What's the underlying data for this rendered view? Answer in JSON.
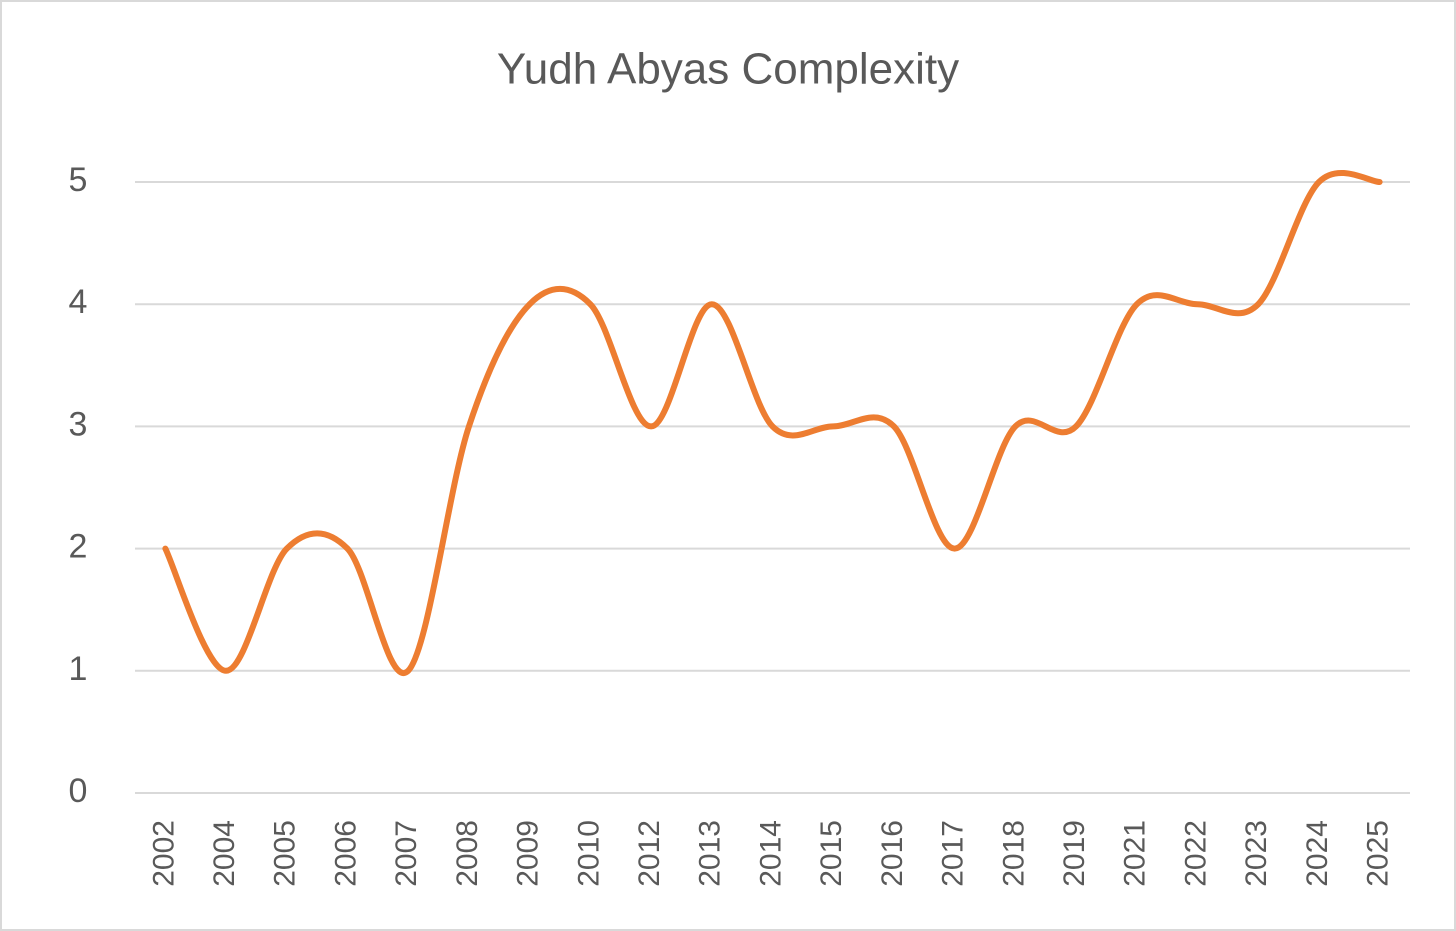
{
  "chart_data": {
    "type": "line",
    "title": "Yudh Abyas Complexity",
    "categories": [
      "2002",
      "2004",
      "2005",
      "2006",
      "2007",
      "2008",
      "2009",
      "2010",
      "2012",
      "2013",
      "2014",
      "2015",
      "2016",
      "2017",
      "2018",
      "2019",
      "2021",
      "2022",
      "2023",
      "2024",
      "2025"
    ],
    "series": [
      {
        "name": "Yudh Abyas Complexity",
        "color": "#ed7d31",
        "values": [
          2,
          1,
          2,
          2,
          1,
          3,
          4,
          4,
          3,
          4,
          3,
          3,
          3,
          2,
          3,
          3,
          4,
          4,
          4,
          5,
          5
        ]
      }
    ],
    "ylim": [
      0,
      5
    ],
    "yticks": [
      0,
      1,
      2,
      3,
      4,
      5
    ],
    "grid": true,
    "smooth": true
  }
}
